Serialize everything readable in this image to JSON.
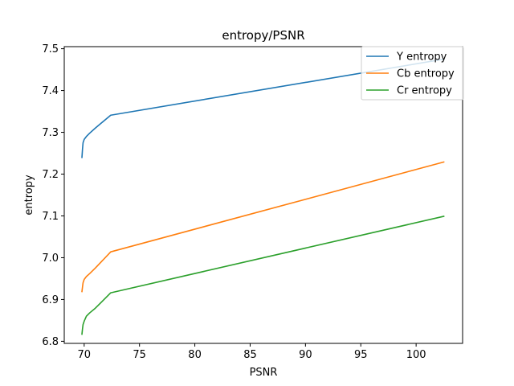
{
  "chart_data": {
    "type": "line",
    "title": "entropy/PSNR",
    "xlabel": "PSNR",
    "ylabel": "entropy",
    "xlim": [
      68.2,
      104.2
    ],
    "ylim": [
      6.795,
      7.505
    ],
    "xticks": [
      70,
      75,
      80,
      85,
      90,
      95,
      100
    ],
    "yticks": [
      6.8,
      6.9,
      7.0,
      7.1,
      7.2,
      7.3,
      7.4,
      7.5
    ],
    "grid": false,
    "legend_position": "top-right",
    "series": [
      {
        "name": "Y entropy",
        "color": "#1f77b4",
        "x": [
          69.8,
          69.85,
          69.9,
          70.0,
          70.2,
          70.5,
          71.0,
          72.4,
          102.5
        ],
        "y": [
          7.24,
          7.26,
          7.275,
          7.283,
          7.29,
          7.298,
          7.31,
          7.341,
          7.475
        ]
      },
      {
        "name": "Cb entropy",
        "color": "#ff7f0e",
        "x": [
          69.8,
          69.85,
          69.9,
          70.0,
          70.2,
          70.5,
          71.0,
          72.4,
          102.5
        ],
        "y": [
          6.919,
          6.93,
          6.94,
          6.948,
          6.955,
          6.962,
          6.975,
          7.014,
          7.229
        ]
      },
      {
        "name": "Cr entropy",
        "color": "#2ca02c",
        "x": [
          69.8,
          69.85,
          69.9,
          70.0,
          70.2,
          70.5,
          71.0,
          72.4,
          102.5
        ],
        "y": [
          6.817,
          6.83,
          6.84,
          6.848,
          6.86,
          6.868,
          6.879,
          6.916,
          7.099
        ]
      }
    ]
  }
}
